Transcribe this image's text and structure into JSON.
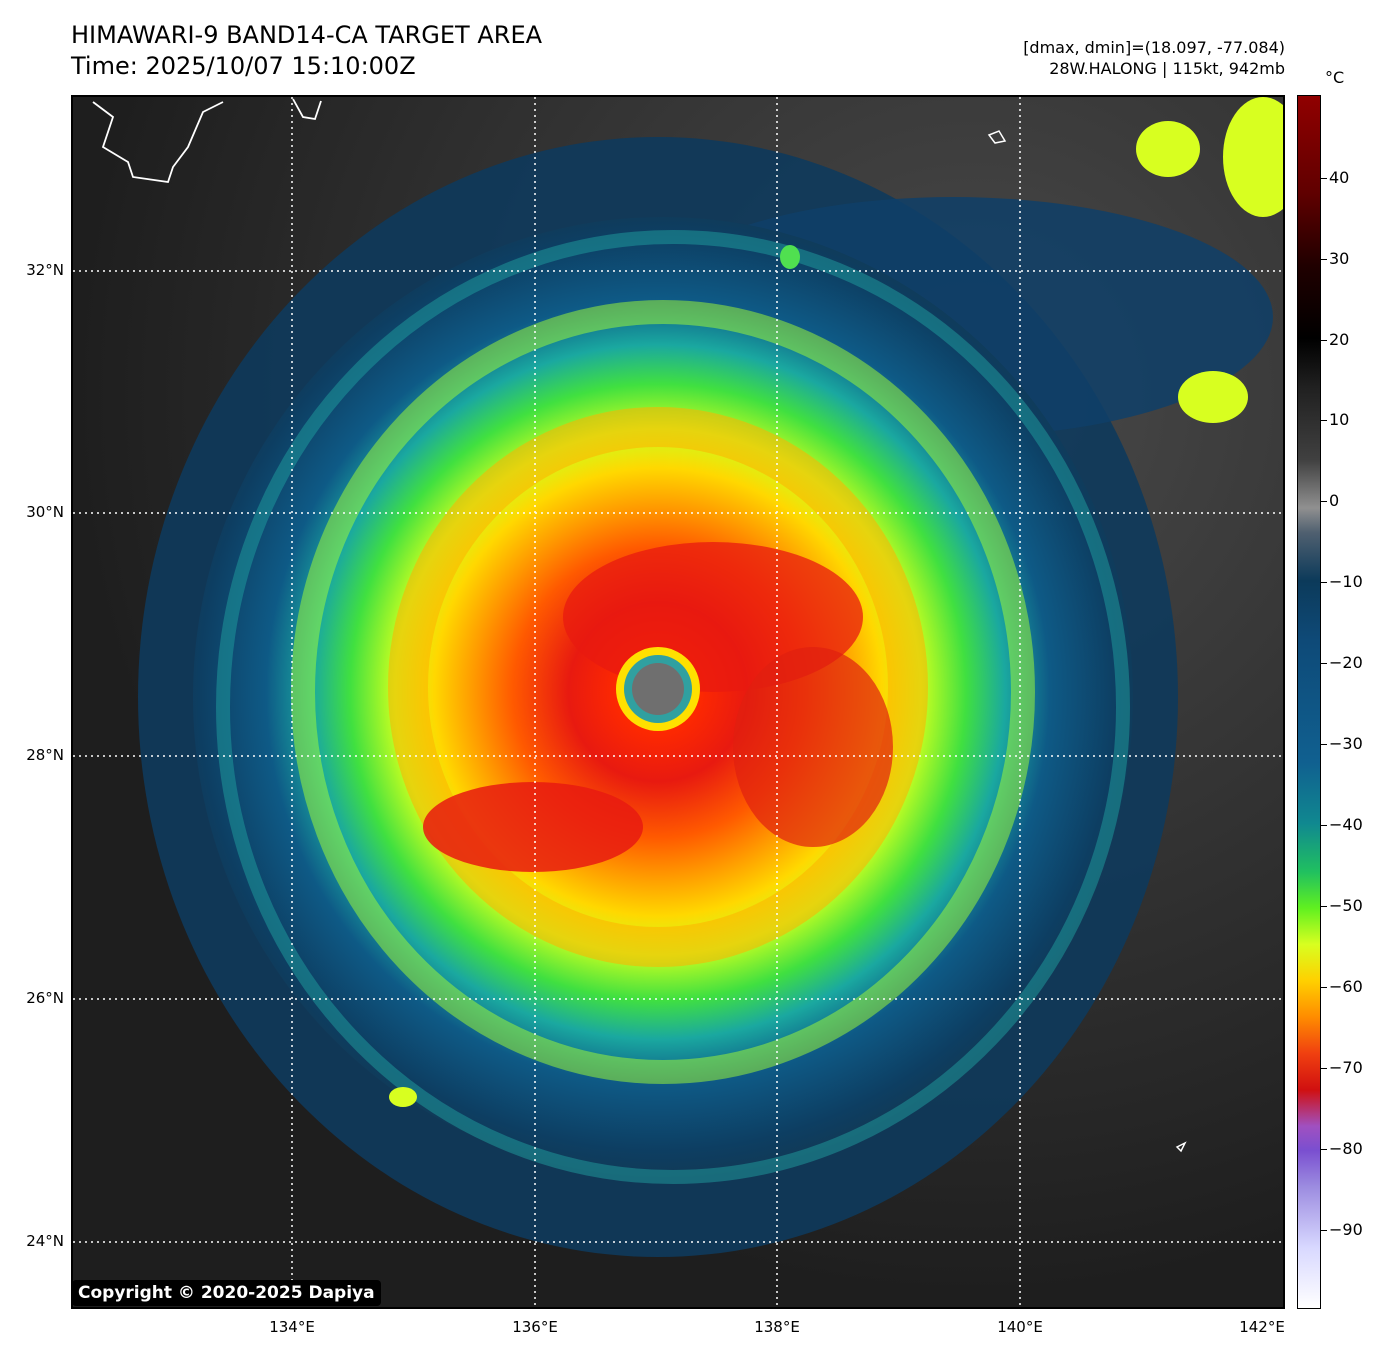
{
  "header": {
    "title": "HIMAWARI-9 BAND14-CA TARGET AREA",
    "time": "Time: 2025/10/07 15:10:00Z",
    "dmax_dmin": "[dmax, dmin]=(18.097, -77.084)",
    "storm": "28W.HALONG | 115kt, 942mb"
  },
  "map": {
    "lat_labels": [
      "32°N",
      "30°N",
      "28°N",
      "26°N",
      "24°N"
    ],
    "lon_labels": [
      "134°E",
      "136°E",
      "138°E",
      "140°E",
      "142°E"
    ],
    "gridlines": "dotted",
    "colors": {
      "eye": "#6f6f6f",
      "eyewall": "#ff2a00",
      "inner_band": "#ff8c00",
      "outer_band": "#a0ff20",
      "cirrus": "#0e4a78",
      "clear": "#2a2a2a"
    }
  },
  "colorbar": {
    "unit": "°C",
    "ticks": [
      "40",
      "30",
      "20",
      "10",
      "0",
      "−10",
      "−20",
      "−30",
      "−40",
      "−50",
      "−60",
      "−70",
      "−80",
      "−90"
    ],
    "range": [
      -100,
      50
    ]
  },
  "copyright": "Copyright © 2020-2025 Dapiya"
}
